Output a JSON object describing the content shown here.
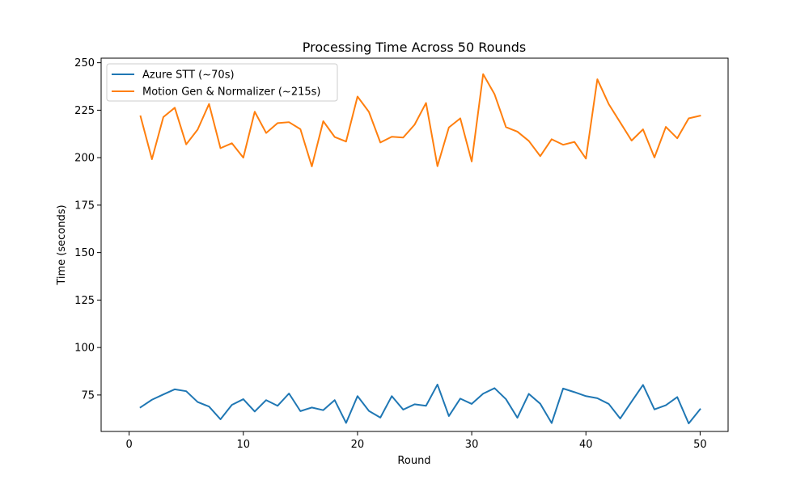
{
  "chart_data": {
    "type": "line",
    "title": "Processing Time Across 50 Rounds",
    "xlabel": "Round",
    "ylabel": "Time (seconds)",
    "xlim": [
      -2.45,
      52.45
    ],
    "ylim": [
      55.8,
      252.4
    ],
    "xticks": [
      0,
      10,
      20,
      30,
      40,
      50
    ],
    "yticks": [
      75,
      100,
      125,
      150,
      175,
      200,
      225,
      250
    ],
    "grid": false,
    "legend_position": "upper left",
    "x": [
      1,
      2,
      3,
      4,
      5,
      6,
      7,
      8,
      9,
      10,
      11,
      12,
      13,
      14,
      15,
      16,
      17,
      18,
      19,
      20,
      21,
      22,
      23,
      24,
      25,
      26,
      27,
      28,
      29,
      30,
      31,
      32,
      33,
      34,
      35,
      36,
      37,
      38,
      39,
      40,
      41,
      42,
      43,
      44,
      45,
      46,
      47,
      48,
      49,
      50
    ],
    "series": [
      {
        "name": "Azure STT (~70s)",
        "color": "#1f77b4",
        "values": [
          68.5,
          72.5,
          75.3,
          78.0,
          77.0,
          71.3,
          68.9,
          62.2,
          69.8,
          72.8,
          66.3,
          72.3,
          69.3,
          75.8,
          66.5,
          68.4,
          67.0,
          72.3,
          60.3,
          74.4,
          66.6,
          63.1,
          74.4,
          67.3,
          70.1,
          69.3,
          80.5,
          63.9,
          73.1,
          70.3,
          75.7,
          78.6,
          72.8,
          63.0,
          75.6,
          70.4,
          60.2,
          78.4,
          76.5,
          74.4,
          73.3,
          70.3,
          62.6,
          71.5,
          80.3,
          67.4,
          69.6,
          73.9,
          60.0,
          67.5
        ]
      },
      {
        "name": "Motion Gen & Normalizer (~215s)",
        "color": "#ff7f0e",
        "values": [
          221.8,
          199.2,
          221.4,
          226.3,
          207.0,
          214.8,
          228.3,
          205.0,
          207.6,
          200.0,
          224.2,
          213.0,
          218.2,
          218.7,
          215.0,
          195.4,
          219.2,
          210.9,
          208.5,
          232.2,
          224.1,
          208.0,
          211.0,
          210.6,
          217.4,
          228.8,
          195.5,
          215.9,
          220.7,
          198.0,
          244.0,
          233.4,
          216.1,
          213.7,
          208.8,
          200.8,
          209.7,
          206.8,
          208.3,
          199.5,
          241.3,
          228.2,
          218.6,
          209.0,
          214.9,
          200.1,
          216.2,
          210.2,
          220.7,
          222.1
        ]
      }
    ]
  }
}
